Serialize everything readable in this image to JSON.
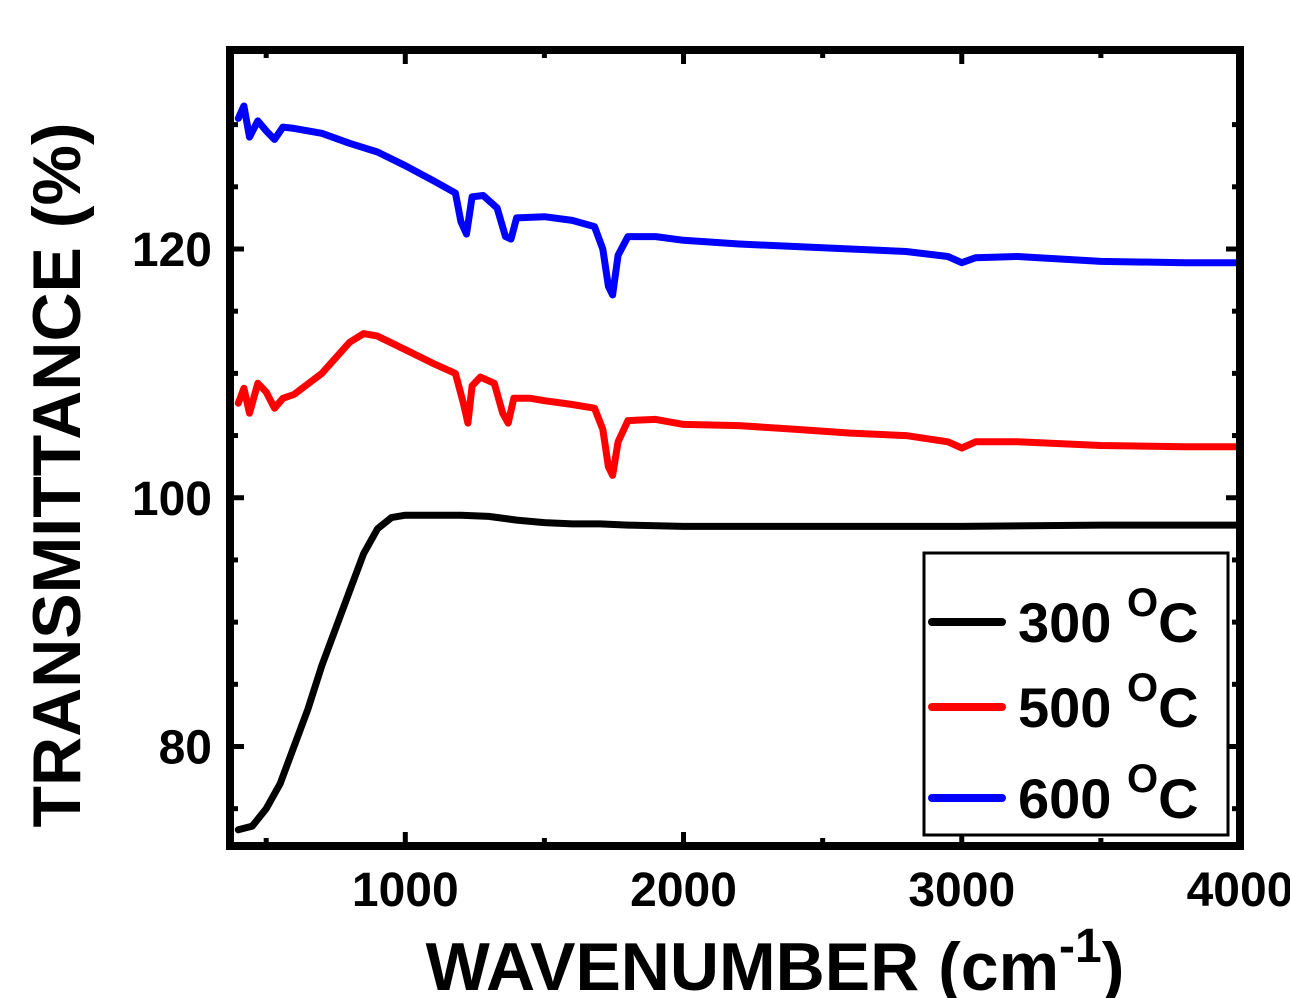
{
  "chart_data": {
    "type": "line",
    "title": "",
    "xlabel": "WAVENUMBER (cm",
    "xlabel_superscript": "-1",
    "xlabel_suffix": ")",
    "ylabel": "TRANSMITTANCE (%)",
    "xlim": [
      370,
      4000
    ],
    "ylim": [
      72,
      136
    ],
    "xticks": [
      1000,
      2000,
      3000,
      4000
    ],
    "xtick_labels": [
      "1000",
      "2000",
      "3000",
      "4000"
    ],
    "yticks": [
      80,
      100,
      120
    ],
    "ytick_labels": [
      "80",
      "100",
      "120"
    ],
    "grid": false,
    "legend_position": "bottom-right",
    "series": [
      {
        "name": "300 ",
        "name_superscript": "O",
        "name_suffix": "C",
        "color": "#000000",
        "points": [
          [
            400,
            73.3
          ],
          [
            450,
            73.6
          ],
          [
            500,
            75
          ],
          [
            550,
            77
          ],
          [
            600,
            80
          ],
          [
            650,
            83
          ],
          [
            700,
            86.5
          ],
          [
            750,
            89.5
          ],
          [
            800,
            92.5
          ],
          [
            850,
            95.5
          ],
          [
            900,
            97.5
          ],
          [
            950,
            98.4
          ],
          [
            1000,
            98.6
          ],
          [
            1100,
            98.6
          ],
          [
            1200,
            98.6
          ],
          [
            1300,
            98.5
          ],
          [
            1400,
            98.2
          ],
          [
            1500,
            98
          ],
          [
            1600,
            97.9
          ],
          [
            1700,
            97.9
          ],
          [
            1800,
            97.8
          ],
          [
            2000,
            97.7
          ],
          [
            2500,
            97.7
          ],
          [
            3000,
            97.7
          ],
          [
            3500,
            97.8
          ],
          [
            4000,
            97.8
          ]
        ]
      },
      {
        "name": "500 ",
        "name_superscript": "O",
        "name_suffix": "C",
        "color": "#ff0000",
        "points": [
          [
            400,
            107.6
          ],
          [
            420,
            108.8
          ],
          [
            440,
            106.8
          ],
          [
            470,
            109.2
          ],
          [
            500,
            108.5
          ],
          [
            530,
            107.2
          ],
          [
            560,
            108
          ],
          [
            600,
            108.3
          ],
          [
            700,
            110
          ],
          [
            800,
            112.5
          ],
          [
            850,
            113.2
          ],
          [
            900,
            113
          ],
          [
            1000,
            111.9
          ],
          [
            1100,
            110.8
          ],
          [
            1180,
            110
          ],
          [
            1210,
            107.5
          ],
          [
            1225,
            106
          ],
          [
            1240,
            109
          ],
          [
            1270,
            109.7
          ],
          [
            1320,
            109.2
          ],
          [
            1350,
            106.8
          ],
          [
            1370,
            106
          ],
          [
            1390,
            108
          ],
          [
            1450,
            108
          ],
          [
            1500,
            107.8
          ],
          [
            1600,
            107.5
          ],
          [
            1680,
            107.2
          ],
          [
            1710,
            105.5
          ],
          [
            1730,
            102.5
          ],
          [
            1745,
            101.8
          ],
          [
            1765,
            104.5
          ],
          [
            1800,
            106.2
          ],
          [
            1900,
            106.3
          ],
          [
            2000,
            105.9
          ],
          [
            2200,
            105.8
          ],
          [
            2400,
            105.5
          ],
          [
            2600,
            105.2
          ],
          [
            2800,
            105
          ],
          [
            2950,
            104.5
          ],
          [
            3000,
            104
          ],
          [
            3050,
            104.5
          ],
          [
            3200,
            104.5
          ],
          [
            3500,
            104.2
          ],
          [
            3800,
            104.1
          ],
          [
            4000,
            104.1
          ]
        ]
      },
      {
        "name": "600 ",
        "name_superscript": "O",
        "name_suffix": "C",
        "color": "#0000ff",
        "points": [
          [
            400,
            130.5
          ],
          [
            420,
            131.5
          ],
          [
            440,
            129
          ],
          [
            470,
            130.3
          ],
          [
            500,
            129.5
          ],
          [
            530,
            128.8
          ],
          [
            560,
            129.8
          ],
          [
            600,
            129.7
          ],
          [
            700,
            129.3
          ],
          [
            800,
            128.5
          ],
          [
            900,
            127.8
          ],
          [
            1000,
            126.7
          ],
          [
            1100,
            125.5
          ],
          [
            1180,
            124.5
          ],
          [
            1200,
            122.2
          ],
          [
            1220,
            121.2
          ],
          [
            1240,
            124.2
          ],
          [
            1280,
            124.3
          ],
          [
            1330,
            123.3
          ],
          [
            1360,
            121
          ],
          [
            1380,
            120.8
          ],
          [
            1400,
            122.5
          ],
          [
            1500,
            122.6
          ],
          [
            1600,
            122.3
          ],
          [
            1680,
            121.8
          ],
          [
            1710,
            120
          ],
          [
            1730,
            117
          ],
          [
            1745,
            116.3
          ],
          [
            1765,
            119.5
          ],
          [
            1800,
            121
          ],
          [
            1900,
            121
          ],
          [
            2000,
            120.7
          ],
          [
            2200,
            120.4
          ],
          [
            2400,
            120.2
          ],
          [
            2600,
            120
          ],
          [
            2800,
            119.8
          ],
          [
            2950,
            119.4
          ],
          [
            3000,
            118.9
          ],
          [
            3050,
            119.3
          ],
          [
            3200,
            119.4
          ],
          [
            3500,
            119
          ],
          [
            3800,
            118.9
          ],
          [
            4000,
            118.9
          ]
        ]
      }
    ]
  }
}
